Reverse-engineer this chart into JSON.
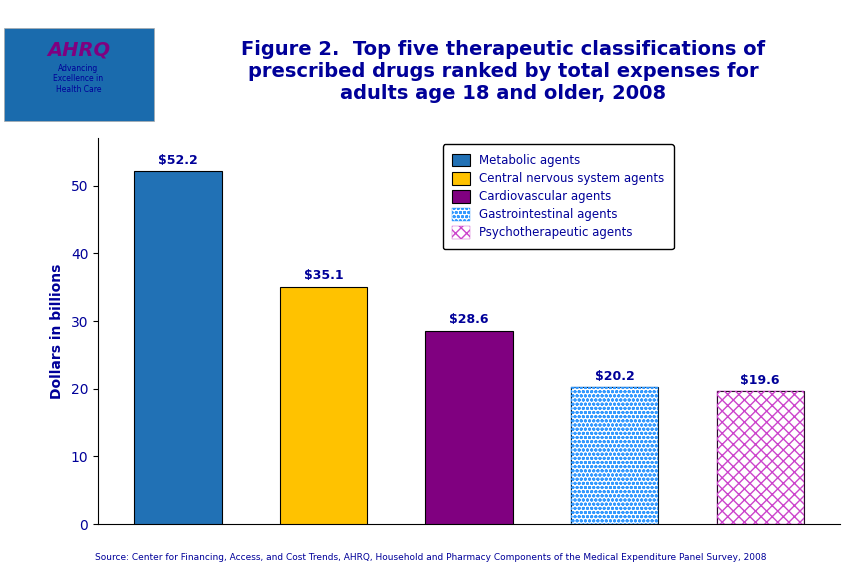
{
  "categories": [
    "Metabolic agents",
    "Central nervous system agents",
    "Cardiovascular agents",
    "Gastrointestinal agents",
    "Psychotherapeutic agents"
  ],
  "values": [
    52.2,
    35.1,
    28.6,
    20.2,
    19.6
  ],
  "labels": [
    "$52.2",
    "$35.1",
    "$28.6",
    "$20.2",
    "$19.6"
  ],
  "solid_colors": [
    "#2171B5",
    "#FFC200",
    "#800080",
    "#FFFFFF",
    "#FFFFFF"
  ],
  "dot_facecolor": "#FFFFFF",
  "dot_edgecolor": "#3399FF",
  "brick_facecolor": "#FFFFFF",
  "brick_edgecolor": "#CC44CC",
  "title_line1": "Figure 2.  Top five therapeutic classifications of",
  "title_line2": "prescribed drugs ranked by total expenses for",
  "title_line3": "adults age 18 and older, 2008",
  "title_color": "#000099",
  "title_fontsize": 14,
  "ylabel": "Dollars in billions",
  "ylabel_color": "#000099",
  "ylim": [
    0,
    57
  ],
  "yticks": [
    0,
    10,
    20,
    30,
    40,
    50
  ],
  "source_text": "Source: Center for Financing, Access, and Cost Trends, AHRQ, Household and Pharmacy Components of the Medical Expenditure Panel Survey, 2008",
  "source_color": "#000099",
  "bg_color": "#FFFFFF",
  "blue_line_color": "#000099",
  "label_color": "#000099",
  "label_fontsize": 9,
  "tick_label_color": "#000099",
  "bar_edgecolor": "#000000",
  "legend_labels": [
    "Metabolic agents",
    "Central nervous system agents",
    "Cardiovascular agents",
    "Gastrointestinal agents",
    "Psychotherapeutic agents"
  ],
  "legend_text_color": "#000099",
  "header_logo_bg": "#1A6BAD",
  "bar_width": 0.6
}
